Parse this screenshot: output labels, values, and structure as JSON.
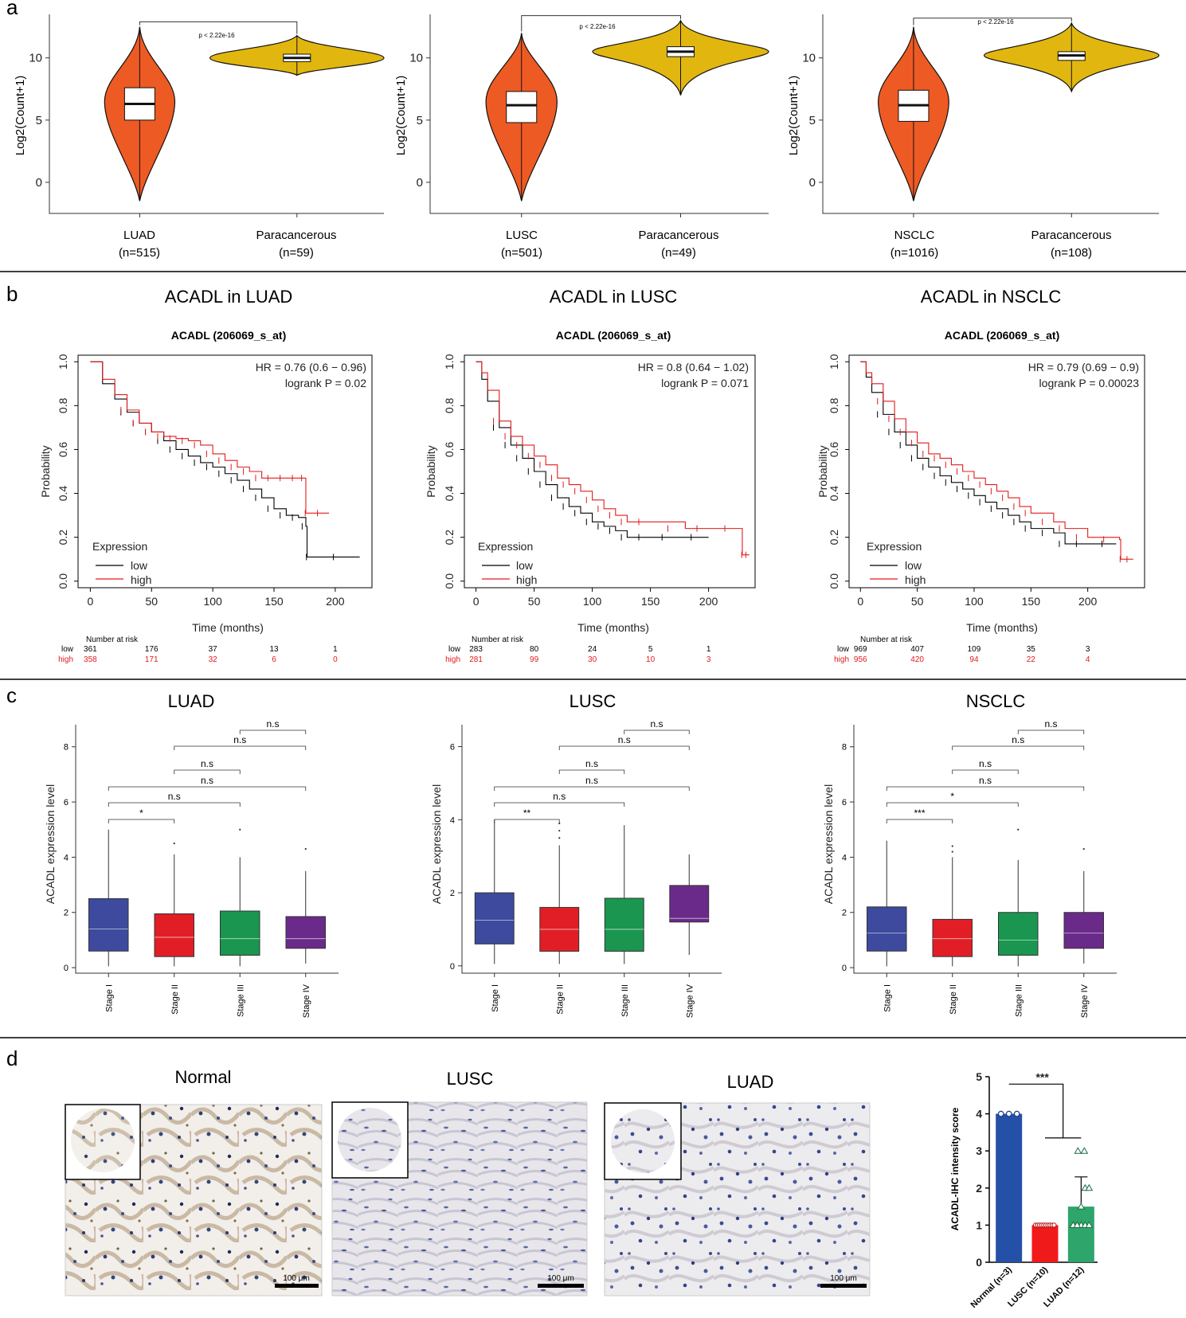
{
  "panels": {
    "a": "a",
    "b": "b",
    "c": "c",
    "d": "d"
  },
  "panel_a": [
    {
      "group1": "LUAD",
      "n1": "(n=515)",
      "group2": "Paracancerous",
      "n2": "(n=59)",
      "p_text": "p < 2.22e-16",
      "ylabel": "Log2(Count+1)"
    },
    {
      "group1": "LUSC",
      "n1": "(n=501)",
      "group2": "Paracancerous",
      "n2": "(n=49)",
      "p_text": "p < 2.22e-16",
      "ylabel": "Log2(Count+1)"
    },
    {
      "group1": "NSCLC",
      "n1": "(n=1016)",
      "group2": "Paracancerous",
      "n2": "(n=108)",
      "p_text": "p < 2.22e-16",
      "ylabel": "Log2(Count+1)"
    }
  ],
  "panel_b": [
    {
      "title": "ACADL in LUAD",
      "subtitle": "ACADL (206069_s_at)",
      "hr": "HR = 0.76 (0.6 − 0.96)",
      "logrank": "logrank P = 0.02",
      "risk_low": [
        "361",
        "176",
        "37",
        "13",
        "1"
      ],
      "risk_high": [
        "358",
        "171",
        "32",
        "6",
        "0"
      ]
    },
    {
      "title": "ACADL in LUSC",
      "subtitle": "ACADL (206069_s_at)",
      "hr": "HR = 0.8 (0.64 − 1.02)",
      "logrank": "logrank P = 0.071",
      "risk_low": [
        "283",
        "80",
        "24",
        "5",
        "1"
      ],
      "risk_high": [
        "281",
        "99",
        "30",
        "10",
        "3"
      ]
    },
    {
      "title": "ACADL in NSCLC",
      "subtitle": "ACADL (206069_s_at)",
      "hr": "HR = 0.79 (0.69 − 0.9)",
      "logrank": "logrank P = 0.00023",
      "risk_low": [
        "969",
        "407",
        "109",
        "35",
        "3"
      ],
      "risk_high": [
        "956",
        "420",
        "94",
        "22",
        "4"
      ]
    }
  ],
  "km_common": {
    "ylabel": "Probability",
    "xlabel": "Time (months)",
    "legend_title": "Expression",
    "low": "low",
    "high": "high",
    "risk_title": "Number at risk",
    "row_low": "low",
    "row_high": "high"
  },
  "panel_c": [
    {
      "title": "LUAD",
      "sig": [
        "*",
        "n.s",
        "n.s",
        "n.s",
        "n.s",
        "n.s"
      ]
    },
    {
      "title": "LUSC",
      "sig": [
        "**",
        "n.s",
        "n.s",
        "n.s",
        "n.s",
        "n.s"
      ]
    },
    {
      "title": "NSCLC",
      "sig": [
        "***",
        "*",
        "n.s",
        "n.s",
        "n.s",
        "n.s"
      ]
    }
  ],
  "box_common": {
    "ylabel": "ACADL expression level",
    "stages": [
      "Stage I",
      "Stage II",
      "Stage III",
      "Stage IV"
    ]
  },
  "panel_d": {
    "images": [
      {
        "title": "Normal"
      },
      {
        "title": "LUSC"
      },
      {
        "title": "LUAD"
      }
    ],
    "scale_label": "100 μm",
    "bar_ylabel": "ACADL-IHC intensity score",
    "bar_categories": [
      "Normal (n=3)",
      "LUSC (n=10)",
      "LUAD (n=12)"
    ],
    "bar_sig": "***"
  },
  "chart_data": [
    {
      "type": "violin",
      "panel": "a1",
      "categories": [
        "LUAD",
        "Paracancerous"
      ],
      "medians": [
        6.3,
        10.0
      ],
      "q1": [
        5.0,
        9.7
      ],
      "q3": [
        7.6,
        10.3
      ],
      "min": [
        -1.5,
        8.6
      ],
      "max": [
        12.5,
        11.8
      ],
      "ylim": [
        -2.5,
        13.5
      ],
      "yticks": [
        0,
        5,
        10
      ],
      "p": "p < 2.22e-16"
    },
    {
      "type": "violin",
      "panel": "a2",
      "categories": [
        "LUSC",
        "Paracancerous"
      ],
      "medians": [
        6.2,
        10.5
      ],
      "q1": [
        4.8,
        10.1
      ],
      "q3": [
        7.3,
        10.9
      ],
      "min": [
        -1.5,
        7.0
      ],
      "max": [
        12.0,
        13.0
      ],
      "ylim": [
        -2.5,
        13.5
      ],
      "yticks": [
        0,
        5,
        10
      ],
      "p": "p < 2.22e-16"
    },
    {
      "type": "violin",
      "panel": "a3",
      "categories": [
        "NSCLC",
        "Paracancerous"
      ],
      "medians": [
        6.2,
        10.2
      ],
      "q1": [
        4.9,
        9.8
      ],
      "q3": [
        7.4,
        10.5
      ],
      "min": [
        -1.5,
        7.3
      ],
      "max": [
        12.5,
        12.8
      ],
      "ylim": [
        -2.5,
        13.5
      ],
      "yticks": [
        0,
        5,
        10
      ],
      "p": "p < 2.22e-16"
    },
    {
      "type": "line",
      "panel": "b1",
      "xlim": [
        -10,
        230
      ],
      "ylim": [
        -0.03,
        1.03
      ],
      "series": [
        {
          "name": "low",
          "x": [
            0,
            10,
            20,
            30,
            40,
            50,
            60,
            70,
            80,
            90,
            100,
            110,
            120,
            130,
            140,
            150,
            160,
            170,
            176,
            177,
            220
          ],
          "y": [
            1.0,
            0.9,
            0.83,
            0.77,
            0.72,
            0.68,
            0.64,
            0.6,
            0.57,
            0.54,
            0.52,
            0.49,
            0.46,
            0.42,
            0.38,
            0.33,
            0.3,
            0.29,
            0.25,
            0.11,
            0.11
          ]
        },
        {
          "name": "high",
          "x": [
            0,
            10,
            20,
            30,
            40,
            50,
            60,
            70,
            80,
            90,
            100,
            110,
            120,
            130,
            140,
            150,
            160,
            170,
            175,
            176,
            195
          ],
          "y": [
            1.0,
            0.92,
            0.85,
            0.78,
            0.72,
            0.68,
            0.66,
            0.65,
            0.64,
            0.62,
            0.58,
            0.55,
            0.52,
            0.5,
            0.47,
            0.47,
            0.47,
            0.47,
            0.47,
            0.31,
            0.31
          ]
        }
      ]
    },
    {
      "type": "line",
      "panel": "b2",
      "xlim": [
        -10,
        240
      ],
      "ylim": [
        -0.03,
        1.03
      ],
      "series": [
        {
          "name": "low",
          "x": [
            0,
            5,
            10,
            20,
            30,
            40,
            50,
            60,
            70,
            80,
            90,
            100,
            110,
            120,
            130,
            150,
            170,
            200
          ],
          "y": [
            1.0,
            0.92,
            0.82,
            0.7,
            0.62,
            0.56,
            0.5,
            0.44,
            0.38,
            0.34,
            0.31,
            0.27,
            0.25,
            0.23,
            0.2,
            0.2,
            0.2,
            0.2
          ]
        },
        {
          "name": "high",
          "x": [
            0,
            5,
            10,
            20,
            30,
            40,
            50,
            60,
            70,
            80,
            90,
            100,
            110,
            120,
            130,
            150,
            180,
            200,
            228,
            229,
            235
          ],
          "y": [
            1.0,
            0.95,
            0.87,
            0.73,
            0.66,
            0.62,
            0.57,
            0.53,
            0.47,
            0.44,
            0.41,
            0.37,
            0.33,
            0.3,
            0.27,
            0.27,
            0.24,
            0.24,
            0.24,
            0.12,
            0.12
          ]
        }
      ]
    },
    {
      "type": "line",
      "panel": "b3",
      "xlim": [
        -10,
        250
      ],
      "ylim": [
        -0.03,
        1.03
      ],
      "series": [
        {
          "name": "low",
          "x": [
            0,
            5,
            10,
            20,
            30,
            40,
            50,
            60,
            70,
            80,
            90,
            100,
            110,
            120,
            130,
            140,
            150,
            170,
            180,
            200,
            225
          ],
          "y": [
            1.0,
            0.93,
            0.86,
            0.76,
            0.68,
            0.62,
            0.56,
            0.52,
            0.48,
            0.45,
            0.42,
            0.39,
            0.36,
            0.33,
            0.3,
            0.27,
            0.24,
            0.22,
            0.17,
            0.17,
            0.17
          ]
        },
        {
          "name": "high",
          "x": [
            0,
            5,
            10,
            20,
            30,
            40,
            50,
            60,
            70,
            80,
            90,
            100,
            110,
            120,
            130,
            140,
            150,
            170,
            180,
            200,
            228,
            229,
            240
          ],
          "y": [
            1.0,
            0.95,
            0.9,
            0.82,
            0.74,
            0.68,
            0.63,
            0.58,
            0.56,
            0.53,
            0.5,
            0.47,
            0.44,
            0.41,
            0.38,
            0.34,
            0.31,
            0.27,
            0.24,
            0.2,
            0.19,
            0.1,
            0.1
          ]
        }
      ]
    },
    {
      "type": "box",
      "panel": "c1",
      "ylim": [
        -0.2,
        8.8
      ],
      "yticks": [
        0,
        2,
        4,
        6,
        8
      ],
      "categories": [
        "Stage I",
        "Stage II",
        "Stage III",
        "Stage IV"
      ],
      "colors": [
        "#3D4A9E",
        "#E11E26",
        "#1A9650",
        "#6A2A8A"
      ],
      "q1": [
        0.6,
        0.4,
        0.45,
        0.7
      ],
      "median": [
        1.4,
        1.1,
        1.05,
        1.05
      ],
      "q3": [
        2.5,
        1.95,
        2.05,
        1.85
      ],
      "whisker_low": [
        0.05,
        0.05,
        0.05,
        0.15
      ],
      "whisker_high": [
        5.0,
        4.1,
        4.0,
        3.5
      ],
      "outliers": [
        [],
        [
          4.5
        ],
        [
          5.0
        ],
        [
          4.3
        ]
      ]
    },
    {
      "type": "box",
      "panel": "c2",
      "ylim": [
        -0.2,
        6.6
      ],
      "yticks": [
        0,
        2,
        4,
        6
      ],
      "categories": [
        "Stage I",
        "Stage II",
        "Stage III",
        "Stage IV"
      ],
      "colors": [
        "#3D4A9E",
        "#E11E26",
        "#1A9650",
        "#6A2A8A"
      ],
      "q1": [
        0.6,
        0.4,
        0.4,
        1.2
      ],
      "median": [
        1.25,
        1.0,
        1.0,
        1.3
      ],
      "q3": [
        2.0,
        1.6,
        1.85,
        2.2
      ],
      "whisker_low": [
        0.05,
        0.05,
        0.05,
        0.3
      ],
      "whisker_high": [
        4.0,
        3.3,
        3.85,
        3.05
      ],
      "outliers": [
        [],
        [
          3.5,
          3.7,
          3.9
        ],
        [],
        []
      ]
    },
    {
      "type": "box",
      "panel": "c3",
      "ylim": [
        -0.2,
        8.8
      ],
      "yticks": [
        0,
        2,
        4,
        6,
        8
      ],
      "categories": [
        "Stage I",
        "Stage II",
        "Stage III",
        "Stage IV"
      ],
      "colors": [
        "#3D4A9E",
        "#E11E26",
        "#1A9650",
        "#6A2A8A"
      ],
      "q1": [
        0.6,
        0.4,
        0.45,
        0.7
      ],
      "median": [
        1.25,
        1.05,
        1.0,
        1.25
      ],
      "q3": [
        2.2,
        1.75,
        2.0,
        2.0
      ],
      "whisker_low": [
        0.05,
        0.05,
        0.05,
        0.15
      ],
      "whisker_high": [
        4.6,
        4.0,
        3.9,
        3.5
      ],
      "outliers": [
        [],
        [
          4.2,
          4.4
        ],
        [
          5.0
        ],
        [
          4.3
        ]
      ]
    },
    {
      "type": "bar",
      "panel": "d",
      "categories": [
        "Normal (n=3)",
        "LUSC (n=10)",
        "LUAD (n=12)"
      ],
      "values": [
        4.0,
        1.0,
        1.5
      ],
      "errors": [
        0.0,
        0.0,
        0.8
      ],
      "colors": [
        "#2550A8",
        "#F01A1A",
        "#2EA56A"
      ],
      "ylim": [
        0,
        5
      ],
      "yticks": [
        0,
        1,
        2,
        3,
        4,
        5
      ],
      "ylabel": "ACADL-IHC intensity score",
      "significance": "***"
    }
  ]
}
